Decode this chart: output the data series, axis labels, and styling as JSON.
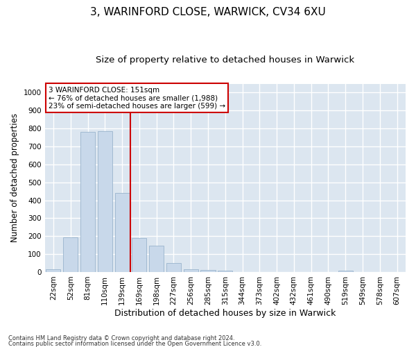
{
  "title1": "3, WARINFORD CLOSE, WARWICK, CV34 6XU",
  "title2": "Size of property relative to detached houses in Warwick",
  "xlabel": "Distribution of detached houses by size in Warwick",
  "ylabel": "Number of detached properties",
  "footer1": "Contains HM Land Registry data © Crown copyright and database right 2024.",
  "footer2": "Contains public sector information licensed under the Open Government Licence v3.0.",
  "annotation_title": "3 WARINFORD CLOSE: 151sqm",
  "annotation_line1": "← 76% of detached houses are smaller (1,988)",
  "annotation_line2": "23% of semi-detached houses are larger (599) →",
  "bar_color": "#c8d8ea",
  "bar_edge_color": "#9ab4cc",
  "vline_color": "#cc0000",
  "vline_x": 4.5,
  "annotation_box_facecolor": "#ffffff",
  "annotation_border_color": "#cc0000",
  "categories": [
    "22sqm",
    "52sqm",
    "81sqm",
    "110sqm",
    "139sqm",
    "169sqm",
    "198sqm",
    "227sqm",
    "256sqm",
    "285sqm",
    "315sqm",
    "344sqm",
    "373sqm",
    "402sqm",
    "432sqm",
    "461sqm",
    "490sqm",
    "519sqm",
    "549sqm",
    "578sqm",
    "607sqm"
  ],
  "values": [
    15,
    195,
    780,
    785,
    440,
    190,
    145,
    50,
    15,
    12,
    8,
    0,
    0,
    0,
    0,
    0,
    0,
    8,
    0,
    0,
    0
  ],
  "ylim": [
    0,
    1050
  ],
  "yticks": [
    0,
    100,
    200,
    300,
    400,
    500,
    600,
    700,
    800,
    900,
    1000
  ],
  "background_color": "#dce6f0",
  "grid_color": "#ffffff",
  "fig_facecolor": "#ffffff",
  "title1_fontsize": 11,
  "title2_fontsize": 9.5,
  "tick_fontsize": 7.5,
  "ylabel_fontsize": 8.5,
  "xlabel_fontsize": 9,
  "annotation_fontsize": 7.5,
  "footer_fontsize": 6
}
